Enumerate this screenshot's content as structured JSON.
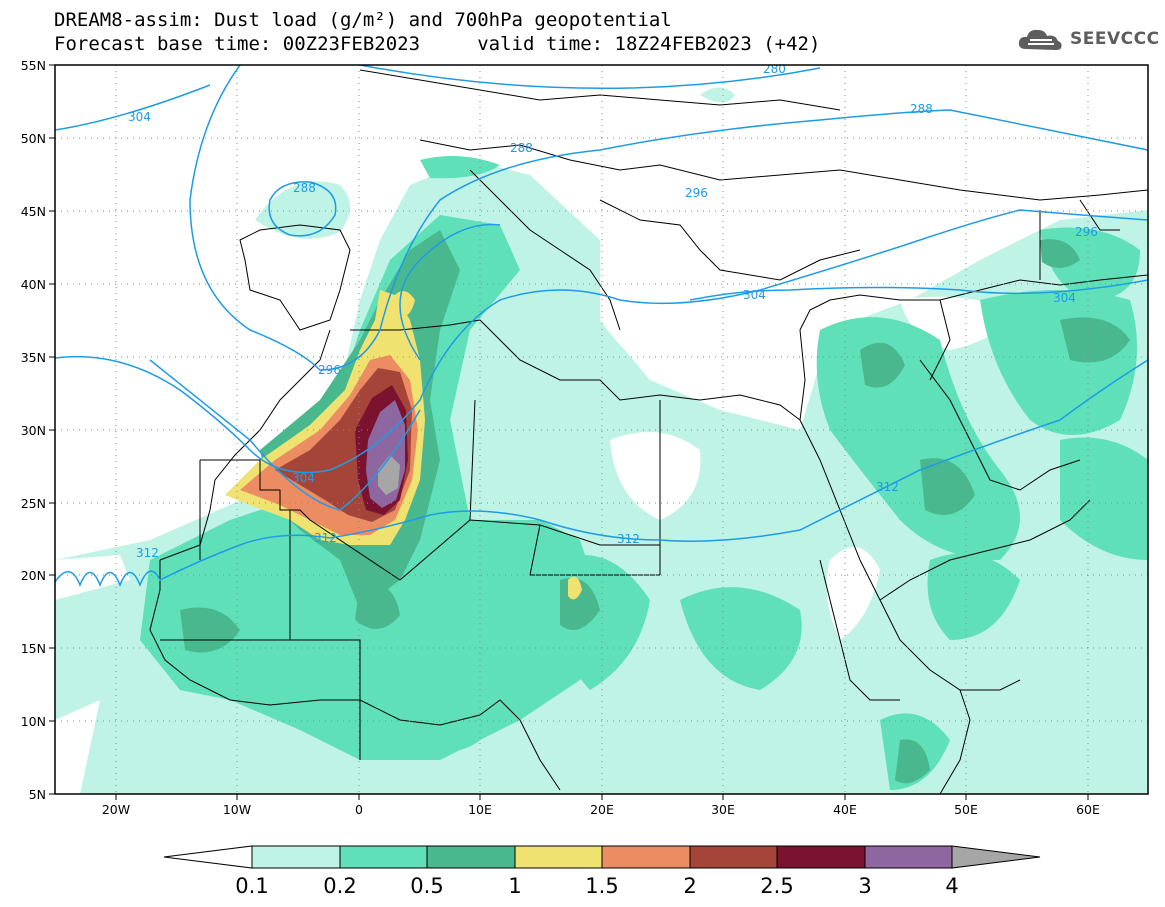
{
  "title_line1": "DREAM8-assim: Dust load (g/m²) and 700hPa geopotential",
  "title_line2": "Forecast base time: 00Z23FEB2023     valid time: 18Z24FEB2023 (+42)",
  "logo_text": "SEEVCCC",
  "lat_labels": [
    "55N",
    "50N",
    "45N",
    "40N",
    "35N",
    "30N",
    "25N",
    "20N",
    "15N",
    "10N",
    "5N"
  ],
  "lon_labels": [
    "20W",
    "10W",
    "0",
    "10E",
    "20E",
    "30E",
    "40E",
    "50E",
    "60E"
  ],
  "contour_labels": {
    "c280": "280",
    "c288a": "288",
    "c288b": "288",
    "c288c": "288",
    "c296a": "296",
    "c296b": "296",
    "c296c": "296",
    "c304a": "304",
    "c304b": "304",
    "c304c": "304",
    "c304d": "304",
    "c312a": "312",
    "c312b": "312",
    "c312c": "312",
    "c312d": "312"
  },
  "colorbar": {
    "labels": [
      "0.1",
      "0.2",
      "0.5",
      "1",
      "1.5",
      "2",
      "2.5",
      "3",
      "4"
    ],
    "colors": [
      "#bff3e6",
      "#5fe0b8",
      "#4ab88e",
      "#f0e270",
      "#eb8c62",
      "#a5453a",
      "#7b1230",
      "#8e66a0"
    ],
    "over_color": "#a6a6a6",
    "under_color": "#ffffff"
  },
  "colors": {
    "contour": "#1f9be6",
    "border": "#000000"
  }
}
